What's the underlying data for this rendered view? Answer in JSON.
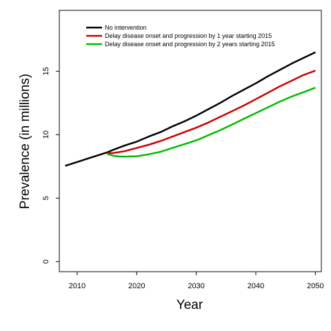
{
  "chart_data": {
    "type": "line",
    "xlabel": "Year",
    "ylabel": "Prevalence (in millions)",
    "xlim": [
      2007,
      2051
    ],
    "ylim": [
      -0.8,
      19.8
    ],
    "xticks": [
      2010,
      2020,
      2030,
      2040,
      2050
    ],
    "yticks": [
      0,
      5,
      10,
      15
    ],
    "legend_position": "top-left",
    "series": [
      {
        "name": "No intervention",
        "color": "#000000",
        "x": [
          2008,
          2010,
          2012,
          2014,
          2015,
          2016,
          2018,
          2020,
          2022,
          2024,
          2026,
          2028,
          2030,
          2032,
          2034,
          2036,
          2038,
          2040,
          2042,
          2044,
          2046,
          2048,
          2050
        ],
        "values": [
          7.55,
          7.85,
          8.15,
          8.45,
          8.6,
          8.8,
          9.15,
          9.45,
          9.85,
          10.2,
          10.65,
          11.05,
          11.5,
          12.0,
          12.5,
          13.05,
          13.55,
          14.05,
          14.6,
          15.1,
          15.6,
          16.05,
          16.5
        ]
      },
      {
        "name": "Delay disease onset and progression by 1 year starting 2015",
        "color": "#cc0000",
        "x": [
          2015,
          2016,
          2018,
          2020,
          2022,
          2024,
          2026,
          2028,
          2030,
          2032,
          2034,
          2036,
          2038,
          2040,
          2042,
          2044,
          2046,
          2048,
          2050
        ],
        "values": [
          8.55,
          8.55,
          8.7,
          8.95,
          9.2,
          9.5,
          9.85,
          10.2,
          10.55,
          10.95,
          11.4,
          11.85,
          12.3,
          12.8,
          13.3,
          13.8,
          14.25,
          14.7,
          15.05
        ]
      },
      {
        "name": "Delay disease onset and progression by 2 years starting 2015",
        "color": "#00bb00",
        "x": [
          2015,
          2016,
          2017,
          2018,
          2020,
          2022,
          2024,
          2026,
          2028,
          2030,
          2032,
          2034,
          2036,
          2038,
          2040,
          2042,
          2044,
          2046,
          2048,
          2050
        ],
        "values": [
          8.5,
          8.35,
          8.28,
          8.27,
          8.3,
          8.45,
          8.65,
          8.95,
          9.25,
          9.55,
          9.95,
          10.35,
          10.8,
          11.25,
          11.7,
          12.15,
          12.6,
          13.0,
          13.35,
          13.7
        ]
      }
    ]
  }
}
